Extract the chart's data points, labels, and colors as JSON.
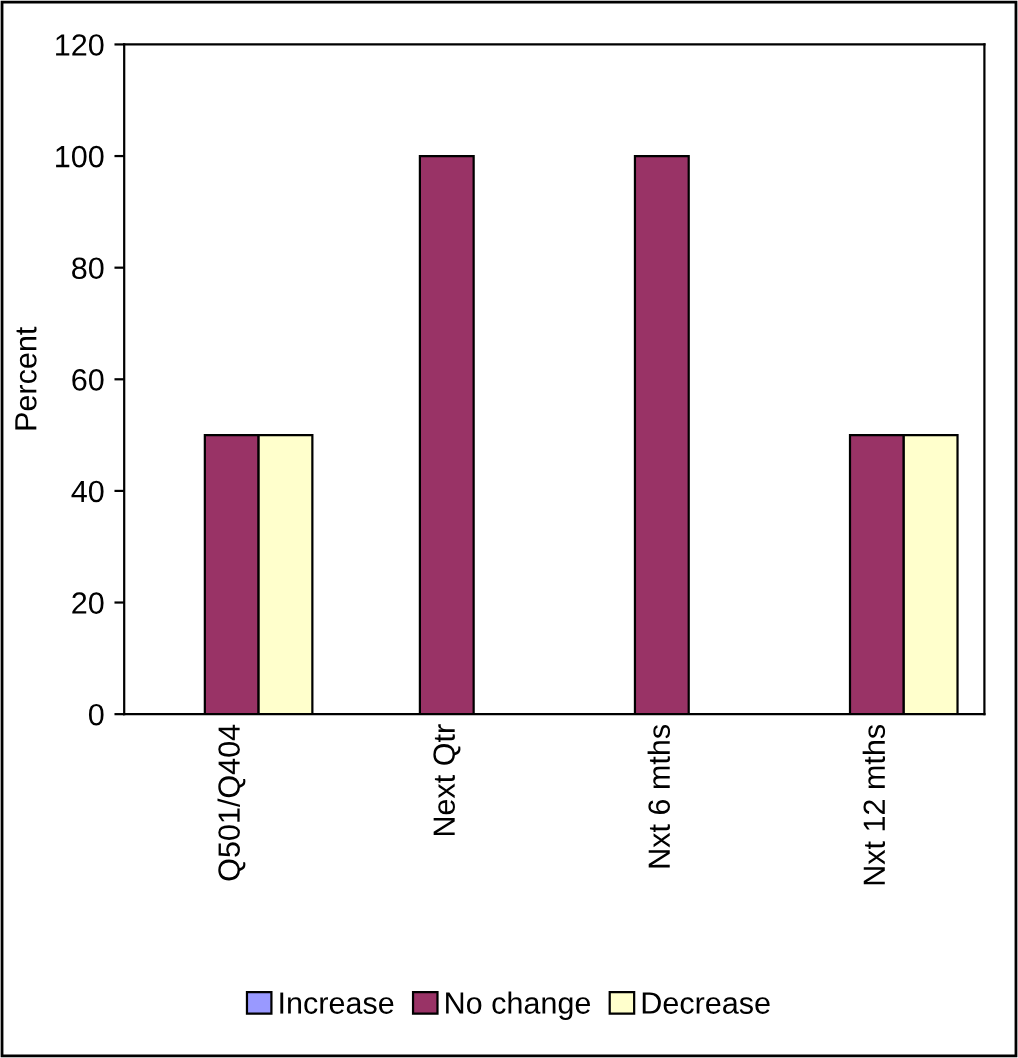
{
  "chart_data": {
    "type": "bar",
    "ylabel": "Percent",
    "categories": [
      "Q501/Q404",
      "Next Qtr",
      "Nxt 6 mths",
      "Nxt 12 mths"
    ],
    "series": [
      {
        "name": "Increase",
        "color": "#9999ff",
        "values": [
          0,
          0,
          0,
          0
        ]
      },
      {
        "name": "No change",
        "color": "#993366",
        "values": [
          50,
          100,
          100,
          50
        ]
      },
      {
        "name": "Decrease",
        "color": "#ffffcc",
        "values": [
          50,
          0,
          0,
          50
        ]
      }
    ],
    "ylim": [
      0,
      120
    ],
    "yticks": [
      0,
      20,
      40,
      60,
      80,
      100,
      120
    ],
    "grid": false,
    "legend": "bottom"
  }
}
